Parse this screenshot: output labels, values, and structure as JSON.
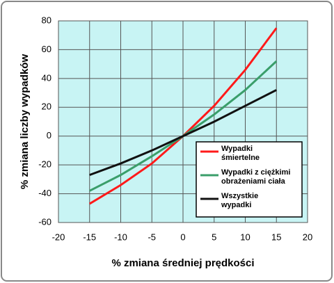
{
  "chart_data": {
    "type": "line",
    "x_label": "% zmiana średniej prędkości",
    "y_label": "% zmiana liczby wypadków",
    "x": [
      -15,
      -10,
      -5,
      0,
      5,
      10,
      15
    ],
    "series": [
      {
        "name": "Wypadki śmiertelne",
        "color": "#ff1a1a",
        "values": [
          -47,
          -34,
          -19,
          0,
          21,
          46,
          75
        ]
      },
      {
        "name": "Wypadki z ciężkimi obrażeniami ciała",
        "color": "#3a9e6a",
        "values": [
          -38,
          -27,
          -14,
          0,
          15,
          32,
          52
        ]
      },
      {
        "name": "Wszystkie wypadki",
        "color": "#111111",
        "values": [
          -27,
          -19,
          -10,
          0,
          10,
          21,
          32
        ]
      }
    ],
    "xlim": [
      -20,
      20
    ],
    "xticks": [
      -20,
      -15,
      -10,
      -5,
      0,
      5,
      10,
      15,
      20
    ],
    "ylim": [
      -60,
      80
    ],
    "yticks": [
      -60,
      -40,
      -20,
      0,
      20,
      40,
      60,
      80
    ],
    "grid": true,
    "legend": "lower-right"
  }
}
